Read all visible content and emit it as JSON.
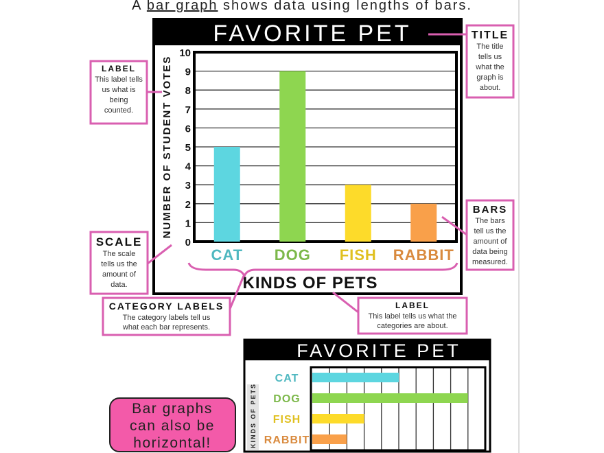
{
  "intro": {
    "prefix": "A ",
    "term": "bar graph",
    "suffix": " shows data using lengths of bars."
  },
  "callouts": {
    "title": {
      "heading": "TITLE",
      "lines": [
        "The title",
        "tells us",
        "what the",
        "graph is",
        "about."
      ]
    },
    "y_label": {
      "heading": "LABEL",
      "lines": [
        "This label tells",
        "us what is",
        "being",
        "counted."
      ]
    },
    "scale": {
      "heading": "SCALE",
      "lines": [
        "The scale",
        "tells us the",
        "amount of",
        "data."
      ]
    },
    "bars": {
      "heading": "BARS",
      "lines": [
        "The bars",
        "tell us the",
        "amount of",
        "data being",
        "measured."
      ]
    },
    "category_labels": {
      "heading": "CATEGORY LABELS",
      "lines": [
        "The category labels tell us",
        "what each bar represents."
      ]
    },
    "x_label": {
      "heading": "LABEL",
      "lines": [
        "This label tells us what the",
        "categories are about."
      ]
    }
  },
  "bubble": {
    "lines": [
      "Bar graphs",
      "can also be",
      "horizontal!"
    ],
    "color": "#f35aa9"
  },
  "colors": {
    "callout_border": "#d95fb0",
    "cat": "#5dd6e0",
    "dog": "#8ed650",
    "fish": "#fddb2a",
    "rabbit": "#f9a04a",
    "cat_text": "#4fb8c0",
    "dog_text": "#7cb84a",
    "fish_text": "#e0c020",
    "rabbit_text": "#d98a3e"
  },
  "chart_data": [
    {
      "type": "bar",
      "orientation": "vertical",
      "title": "FAVORITE PET",
      "xlabel": "KINDS OF PETS",
      "ylabel": "NUMBER OF STUDENT VOTES",
      "categories": [
        "CAT",
        "DOG",
        "FISH",
        "RABBIT"
      ],
      "values": [
        5,
        9,
        3,
        2
      ],
      "ylim": [
        0,
        10
      ],
      "yticks": [
        "0",
        "1",
        "2",
        "3",
        "4",
        "5",
        "6",
        "7",
        "8",
        "9",
        "10"
      ],
      "grid": true
    },
    {
      "type": "bar",
      "orientation": "horizontal",
      "title": "FAVORITE PET",
      "ylabel": "KINDS OF PETS",
      "categories": [
        "CAT",
        "DOG",
        "FISH",
        "RABBIT"
      ],
      "values": [
        5,
        9,
        3,
        2
      ],
      "xlim": [
        0,
        10
      ],
      "grid": true
    }
  ]
}
